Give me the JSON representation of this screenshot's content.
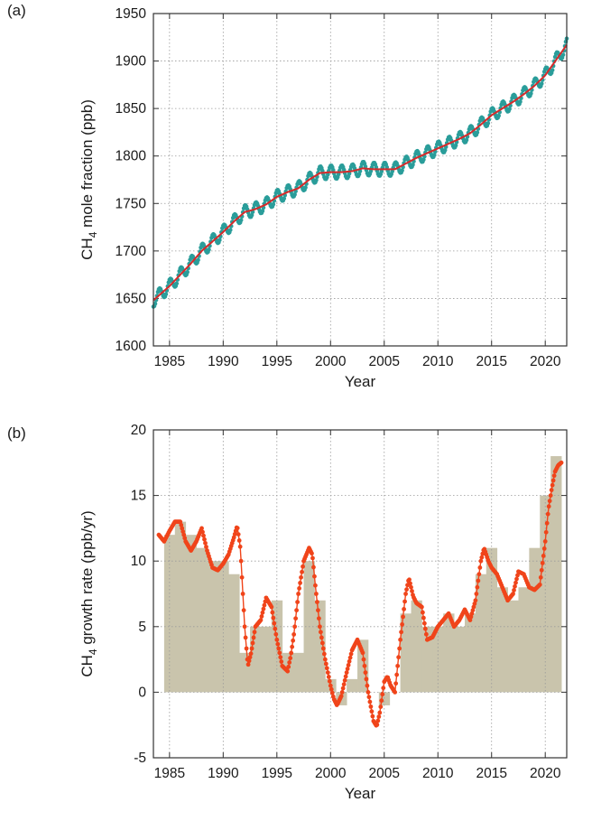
{
  "colors": {
    "monthly_points": "#2a9d9a",
    "trend_line": "#d62a2a",
    "growth_points": "#f0441a",
    "annual_bars": "#c9c4ac",
    "frame": "#333333"
  },
  "chart_data": [
    {
      "panel": "(a)",
      "type": "line",
      "xlabel": "Year",
      "ylabel_main": "CH",
      "ylabel_sub": "4",
      "ylabel_rest": " mole fraction (ppb)",
      "xlim": [
        1983.5,
        2022.0
      ],
      "ylim": [
        1600,
        1950
      ],
      "xticks": [
        1985,
        1990,
        1995,
        2000,
        2005,
        2010,
        2015,
        2020
      ],
      "yticks": [
        1600,
        1650,
        1700,
        1750,
        1800,
        1850,
        1900,
        1950
      ],
      "grid": true,
      "series": [
        {
          "style": "points",
          "seasonal_amplitude_ppb": 7,
          "x_range": [
            1983.5,
            2022.0
          ]
        },
        {
          "style": "line",
          "x": [
            1983.5,
            1985,
            1986,
            1987,
            1988,
            1989,
            1990,
            1991,
            1992,
            1993,
            1994,
            1995,
            1996,
            1997,
            1998,
            1999,
            2000,
            2001,
            2002,
            2003,
            2004,
            2005,
            2006,
            2007,
            2008,
            2009,
            2010,
            2011,
            2012,
            2013,
            2014,
            2015,
            2016,
            2017,
            2018,
            2019,
            2020,
            2021,
            2022
          ],
          "values": [
            1648,
            1663,
            1675,
            1687,
            1700,
            1710,
            1720,
            1731,
            1741,
            1744,
            1749,
            1757,
            1762,
            1766,
            1775,
            1782,
            1783,
            1783,
            1784,
            1787,
            1786,
            1786,
            1786,
            1792,
            1798,
            1803,
            1808,
            1813,
            1818,
            1824,
            1833,
            1843,
            1850,
            1857,
            1865,
            1874,
            1885,
            1901,
            1917
          ]
        }
      ]
    },
    {
      "panel": "(b)",
      "type": "bar",
      "xlabel": "Year",
      "ylabel_main": "CH",
      "ylabel_sub": "4",
      "ylabel_rest": " growth rate (ppb/yr)",
      "xlim": [
        1983.5,
        2022.0
      ],
      "ylim": [
        -5,
        20
      ],
      "xticks": [
        1985,
        1990,
        1995,
        2000,
        2005,
        2010,
        2015,
        2020
      ],
      "yticks": [
        -5,
        0,
        5,
        10,
        15,
        20
      ],
      "grid": true,
      "annual_bars": {
        "years": [
          1985,
          1986,
          1987,
          1988,
          1989,
          1990,
          1991,
          1992,
          1993,
          1994,
          1995,
          1996,
          1997,
          1998,
          1999,
          2000,
          2001,
          2002,
          2003,
          2004,
          2005,
          2006,
          2007,
          2008,
          2009,
          2010,
          2011,
          2012,
          2013,
          2014,
          2015,
          2016,
          2017,
          2018,
          2019,
          2020,
          2021
        ],
        "values": [
          12,
          13,
          12,
          11,
          10,
          10,
          9,
          3,
          5,
          5,
          7,
          3,
          3,
          10,
          7,
          1,
          -1,
          1,
          4,
          0,
          -1,
          0,
          6,
          7,
          5,
          5,
          6,
          5,
          6,
          9,
          11,
          8,
          7,
          8,
          11,
          15,
          18
        ]
      },
      "growth_curve": {
        "x": [
          1984.0,
          1984.5,
          1985.0,
          1985.5,
          1986.0,
          1986.5,
          1987.0,
          1987.5,
          1988.0,
          1988.5,
          1989.0,
          1989.5,
          1990.0,
          1990.5,
          1991.0,
          1991.3,
          1991.6,
          1992.0,
          1992.3,
          1992.6,
          1993.0,
          1993.5,
          1994.0,
          1994.5,
          1995.0,
          1995.5,
          1996.0,
          1996.3,
          1996.6,
          1997.0,
          1997.5,
          1998.0,
          1998.3,
          1998.6,
          1999.0,
          1999.5,
          2000.0,
          2000.3,
          2000.6,
          2001.0,
          2001.5,
          2002.0,
          2002.5,
          2003.0,
          2003.5,
          2004.0,
          2004.3,
          2004.6,
          2005.0,
          2005.3,
          2005.6,
          2006.0,
          2006.5,
          2007.0,
          2007.3,
          2007.7,
          2008.0,
          2008.5,
          2009.0,
          2009.5,
          2010.0,
          2010.5,
          2011.0,
          2011.5,
          2012.0,
          2012.5,
          2013.0,
          2013.5,
          2014.0,
          2014.3,
          2014.7,
          2015.0,
          2015.5,
          2016.0,
          2016.5,
          2017.0,
          2017.5,
          2018.0,
          2018.5,
          2019.0,
          2019.5,
          2020.0,
          2020.3,
          2020.6,
          2020.9,
          2021.2,
          2021.5
        ],
        "values": [
          12,
          11.5,
          12.3,
          13,
          13,
          11.5,
          10.8,
          11.5,
          12.5,
          10.8,
          9.5,
          9.3,
          9.8,
          10.5,
          11.8,
          12.7,
          11,
          5,
          2,
          3,
          5,
          5.5,
          7.2,
          6.5,
          4,
          2,
          1.6,
          2.8,
          4.5,
          7.5,
          10,
          11,
          10.5,
          8,
          5,
          2.5,
          0.5,
          -0.5,
          -1,
          -0.3,
          1.5,
          3.2,
          4,
          3,
          0,
          -2.2,
          -2.6,
          -1.5,
          0.8,
          1.2,
          0.5,
          0,
          4,
          7.5,
          8.7,
          7.3,
          6.8,
          6.5,
          4,
          4.2,
          5,
          5.5,
          6,
          5,
          5.5,
          6.3,
          5.5,
          7,
          10,
          11,
          10,
          9.5,
          9,
          8,
          7,
          7.5,
          9.2,
          9,
          8,
          7.8,
          8.2,
          11.5,
          14,
          15.5,
          16.8,
          17.3,
          17.5
        ]
      }
    }
  ]
}
